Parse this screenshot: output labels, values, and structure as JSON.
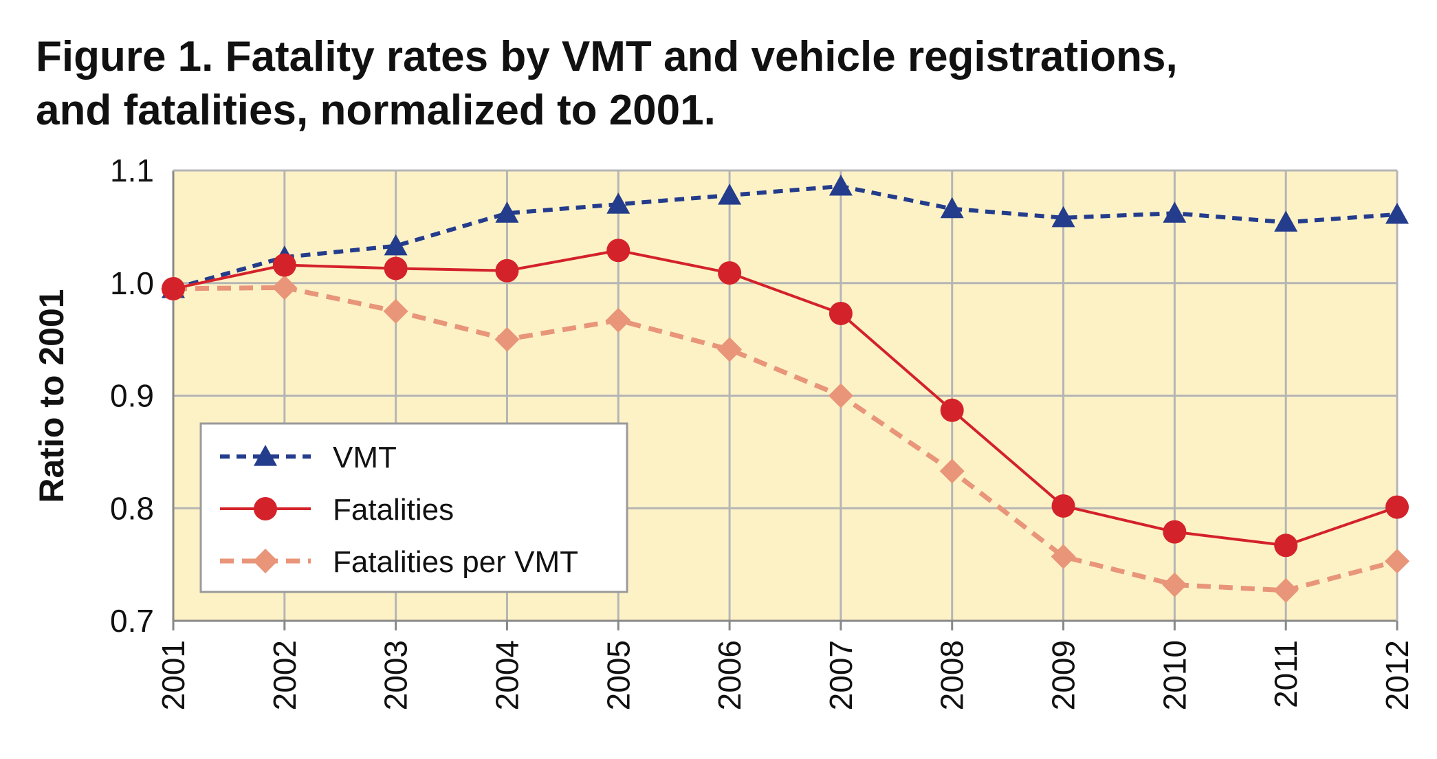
{
  "chart_data": {
    "type": "line",
    "title_line1": "Figure 1. Fatality rates by VMT and vehicle registrations,",
    "title_line2": "and fatalities, normalized to 2001.",
    "xlabel": "",
    "ylabel": "Ratio to 2001",
    "ylim": [
      0.7,
      1.1
    ],
    "yticks": [
      "1.1",
      "1.0",
      "0.9",
      "0.8",
      "0.7"
    ],
    "categories": [
      "2001",
      "2002",
      "2003",
      "2004",
      "2005",
      "2006",
      "2007",
      "2008",
      "2009",
      "2010",
      "2011",
      "2012"
    ],
    "grid": true,
    "legend_position": "lower-left",
    "series": [
      {
        "name": "VMT",
        "marker": "triangle",
        "style": "dashed",
        "color": "#243c8c",
        "values": [
          0.995,
          1.023,
          1.033,
          1.062,
          1.07,
          1.078,
          1.086,
          1.066,
          1.058,
          1.062,
          1.054,
          1.061
        ]
      },
      {
        "name": "Fatalities",
        "marker": "circle",
        "style": "solid",
        "color": "#d4222a",
        "values": [
          0.995,
          1.016,
          1.013,
          1.011,
          1.029,
          1.009,
          0.973,
          0.887,
          0.802,
          0.779,
          0.767,
          0.801
        ]
      },
      {
        "name": "Fatalities per VMT",
        "marker": "diamond",
        "style": "dashed",
        "color": "#e8957a",
        "values": [
          0.995,
          0.996,
          0.975,
          0.95,
          0.967,
          0.941,
          0.9,
          0.833,
          0.757,
          0.732,
          0.727,
          0.753
        ]
      }
    ]
  },
  "colors": {
    "plot_background": "#fdf2c6",
    "grid": "#b5b5b5"
  }
}
